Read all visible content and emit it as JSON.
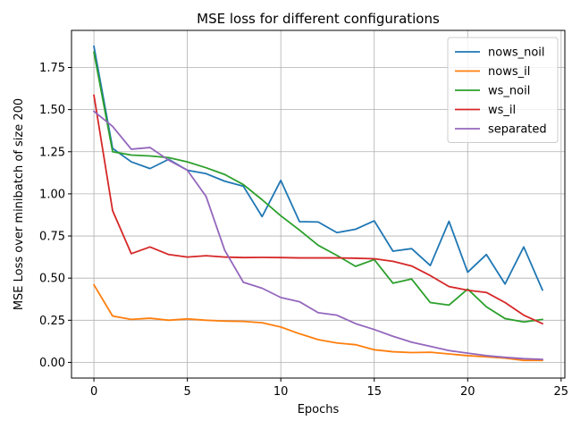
{
  "chart_data": {
    "type": "line",
    "title": "MSE loss for different configurations",
    "xlabel": "Epochs",
    "ylabel": "MSE Loss over minibatch of size 200",
    "xlim": [
      -1.2,
      25.2
    ],
    "ylim": [
      -0.093,
      1.97
    ],
    "xticks": [
      0,
      5,
      10,
      15,
      20,
      25
    ],
    "yticks": [
      0.0,
      0.25,
      0.5,
      0.75,
      1.0,
      1.25,
      1.5,
      1.75
    ],
    "ytick_labels": [
      "0.00",
      "0.25",
      "0.50",
      "0.75",
      "1.00",
      "1.25",
      "1.50",
      "1.75"
    ],
    "grid": true,
    "legend_position": "top-right",
    "x": [
      0,
      1,
      2,
      3,
      4,
      5,
      6,
      7,
      8,
      9,
      10,
      11,
      12,
      13,
      14,
      15,
      16,
      17,
      18,
      19,
      20,
      21,
      22,
      23,
      24
    ],
    "series": [
      {
        "name": "nows_noil",
        "color": "#1f77b4",
        "values": [
          1.875,
          1.27,
          1.19,
          1.15,
          1.205,
          1.14,
          1.12,
          1.075,
          1.045,
          0.865,
          1.08,
          0.835,
          0.833,
          0.77,
          0.79,
          0.84,
          0.66,
          0.675,
          0.575,
          0.837,
          0.535,
          0.64,
          0.465,
          0.685,
          0.43
        ]
      },
      {
        "name": "nows_il",
        "color": "#ff7f0e",
        "values": [
          0.46,
          0.275,
          0.255,
          0.262,
          0.25,
          0.258,
          0.25,
          0.245,
          0.243,
          0.235,
          0.21,
          0.17,
          0.135,
          0.115,
          0.105,
          0.075,
          0.063,
          0.058,
          0.06,
          0.05,
          0.04,
          0.033,
          0.025,
          0.012,
          0.012
        ]
      },
      {
        "name": "ws_noil",
        "color": "#2ca02c",
        "values": [
          1.84,
          1.25,
          1.23,
          1.225,
          1.215,
          1.19,
          1.155,
          1.115,
          1.055,
          0.965,
          0.87,
          0.785,
          0.695,
          0.635,
          0.57,
          0.61,
          0.47,
          0.495,
          0.355,
          0.34,
          0.435,
          0.33,
          0.26,
          0.24,
          0.255
        ]
      },
      {
        "name": "ws_il",
        "color": "#d62728",
        "values": [
          1.585,
          0.9,
          0.645,
          0.685,
          0.64,
          0.625,
          0.633,
          0.625,
          0.622,
          0.623,
          0.622,
          0.62,
          0.62,
          0.62,
          0.618,
          0.615,
          0.6,
          0.572,
          0.515,
          0.45,
          0.428,
          0.415,
          0.355,
          0.28,
          0.23
        ]
      },
      {
        "name": "separated",
        "color": "#9467bd",
        "values": [
          1.49,
          1.4,
          1.265,
          1.275,
          1.2,
          1.14,
          0.985,
          0.665,
          0.475,
          0.44,
          0.385,
          0.36,
          0.295,
          0.28,
          0.23,
          0.195,
          0.155,
          0.12,
          0.095,
          0.07,
          0.055,
          0.04,
          0.03,
          0.022,
          0.018
        ]
      }
    ]
  }
}
